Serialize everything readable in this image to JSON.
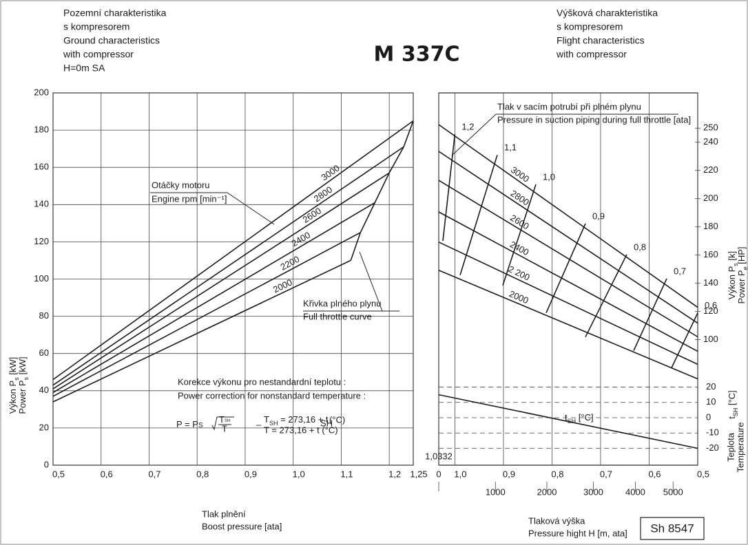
{
  "page": {
    "title": "M 337C",
    "code": "Sh 8547"
  },
  "chart_data": [
    {
      "type": "line",
      "title": [
        "Pozemní charakteristika",
        "s kompresorem",
        "Ground characteristics",
        "with compressor",
        "H=0m SA"
      ],
      "xlabel": [
        "Tlak plnění",
        "Boost pressure [ata]"
      ],
      "ylabel": [
        {
          "text": "Výkon P",
          "sub": "s",
          "rest": " [kW]"
        },
        {
          "text": "Power P",
          "sub": "s",
          "rest": " [kW]"
        }
      ],
      "xlim": [
        0.5,
        1.25
      ],
      "xticks": [
        {
          "value": 0.5,
          "label": "0,5"
        },
        {
          "value": 0.6,
          "label": "0,6"
        },
        {
          "value": 0.7,
          "label": "0,7"
        },
        {
          "value": 0.8,
          "label": "0,8"
        },
        {
          "value": 0.9,
          "label": "0,9"
        },
        {
          "value": 1.0,
          "label": "1,0"
        },
        {
          "value": 1.1,
          "label": "1,1"
        },
        {
          "value": 1.2,
          "label": "1,2"
        },
        {
          "value": 1.25,
          "label": "1,25"
        }
      ],
      "ylim": [
        0,
        200
      ],
      "yticks": [
        0,
        20,
        40,
        60,
        80,
        100,
        120,
        140,
        160,
        180,
        200
      ],
      "grid": true,
      "color": "#1a1a1a",
      "series": [
        {
          "name": "3000",
          "x": [
            0.5,
            1.25
          ],
          "values": [
            46,
            185
          ]
        },
        {
          "name": "2800",
          "x": [
            0.5,
            1.23
          ],
          "values": [
            43,
            171
          ]
        },
        {
          "name": "2600",
          "x": [
            0.5,
            1.2
          ],
          "values": [
            41,
            157
          ]
        },
        {
          "name": "2400",
          "x": [
            0.5,
            1.17
          ],
          "values": [
            39,
            141
          ]
        },
        {
          "name": "2200",
          "x": [
            0.5,
            1.14
          ],
          "values": [
            37,
            125
          ]
        },
        {
          "name": "2000",
          "x": [
            0.5,
            1.12
          ],
          "values": [
            34,
            110
          ]
        }
      ],
      "full_throttle_curve": {
        "x": [
          1.12,
          1.14,
          1.17,
          1.2,
          1.23,
          1.25
        ],
        "values": [
          110,
          125,
          141,
          157,
          171,
          185
        ]
      },
      "annotations": {
        "rpm": [
          "Otáčky motoru",
          "Engine rpm [min⁻¹]"
        ],
        "full_throttle": [
          "Křivka plného plynu",
          "Full throttle curve"
        ],
        "correction": [
          "Korekce výkonu pro nestandardní teplotu :",
          "Power correction for nonstandard temperature :"
        ],
        "formula": {
          "lhs": "P = P",
          "lhs_sub": "S",
          "num": "T",
          "num_sub": "SH",
          "den": "T",
          "sep": "–",
          "eq1": {
            "text": "T",
            "sub": "SH",
            "rest": " = 273,16 + t"
          },
          "eq1_sub": "SH",
          "eq1_unit": " (°C)",
          "eq2": "T = 273,16 + t (°C)"
        }
      }
    },
    {
      "type": "line",
      "title": [
        "Výšková charakteristika",
        "s kompresorem",
        "Flight characteristics",
        "with compressor"
      ],
      "xlabel": [
        "Tlaková výška",
        "Pressure hight  H [m, ata]"
      ],
      "ylabel": [
        {
          "text": "Výkon P",
          "sub": "s",
          "rest": " [k]"
        },
        {
          "text": "Power P",
          "sub": "e",
          "rest": " [HP]"
        }
      ],
      "y2label": [
        {
          "text": "t",
          "sub": "SH",
          "rest": " [°C]"
        },
        "Teplota",
        "Temperature"
      ],
      "header": [
        "Tlak v sacím potrubí při plném plynu",
        "Pressure in suction piping during full throttle [ata]"
      ],
      "temp_label": {
        "text": "t",
        "sub": "SH",
        "rest": " [°C]"
      },
      "xlim": [
        1.0332,
        0.5
      ],
      "xticks": [
        {
          "value": 1.0332,
          "label": "1,0332"
        },
        {
          "value": 1.0,
          "label": "1,0"
        },
        {
          "value": 0.9,
          "label": "0,9"
        },
        {
          "value": 0.8,
          "label": "0,8"
        },
        {
          "value": 0.7,
          "label": "0,7"
        },
        {
          "value": 0.6,
          "label": "0,6"
        },
        {
          "value": 0.5,
          "label": "0,5"
        }
      ],
      "x2ticks": [
        {
          "value": 1.0332,
          "label": "0"
        },
        {
          "value": 0.9165,
          "label": "1000"
        },
        {
          "value": 0.8106,
          "label": "2000"
        },
        {
          "value": 0.7149,
          "label": "3000"
        },
        {
          "value": 0.6284,
          "label": "4000"
        },
        {
          "value": 0.5507,
          "label": "5000"
        }
      ],
      "ylim": [
        11,
        275
      ],
      "yticks": [
        100,
        120,
        140,
        160,
        180,
        200,
        220,
        240,
        250
      ],
      "y2lim": [
        -31,
        212
      ],
      "y2ticks": [
        20,
        10,
        0,
        -10,
        -20
      ],
      "grid": true,
      "color": "#1a1a1a",
      "series": [
        {
          "name": "3000",
          "x": [
            1.0332,
            0.5
          ],
          "values": [
            252.5,
            122.9
          ]
        },
        {
          "name": "2800",
          "x": [
            1.0332,
            0.5
          ],
          "values": [
            233.5,
            111.7
          ]
        },
        {
          "name": "2600",
          "x": [
            1.0332,
            0.5
          ],
          "values": [
            213,
            102
          ]
        },
        {
          "name": "2400",
          "x": [
            1.0332,
            0.5
          ],
          "values": [
            190.6,
            91.7
          ]
        },
        {
          "name": "2 200",
          "x": [
            1.0332,
            0.5
          ],
          "values": [
            169.2,
            82.5
          ]
        },
        {
          "name": "2000",
          "x": [
            1.0332,
            0.5
          ],
          "values": [
            149.2,
            72.2
          ]
        }
      ],
      "boost_lines": [
        {
          "name": "1,2",
          "x": [
            1.0247,
            1.0
          ],
          "values": [
            170.1,
            245.6
          ]
        },
        {
          "name": "1,1",
          "x": [
            0.9892,
            0.9127
          ],
          "values": [
            145.8,
            231.0
          ]
        },
        {
          "name": "1,0",
          "x": [
            0.9013,
            0.8333
          ],
          "values": [
            138.5,
            210.1
          ]
        },
        {
          "name": "0,9",
          "x": [
            0.812,
            0.7312
          ],
          "values": [
            119,
            182.3
          ]
        },
        {
          "name": "0,8",
          "x": [
            0.7312,
            0.6461
          ],
          "values": [
            101.9,
            160.4
          ]
        },
        {
          "name": "0,7",
          "x": [
            0.6319,
            0.5638
          ],
          "values": [
            92.2,
            143.3
          ]
        },
        {
          "name": "0,6",
          "x": [
            0.5539,
            0.5
          ],
          "values": [
            80,
            119
          ]
        }
      ],
      "temperature": {
        "axis": "y2",
        "x": [
          1.0332,
          0.5
        ],
        "values": [
          15,
          -20
        ]
      }
    }
  ]
}
